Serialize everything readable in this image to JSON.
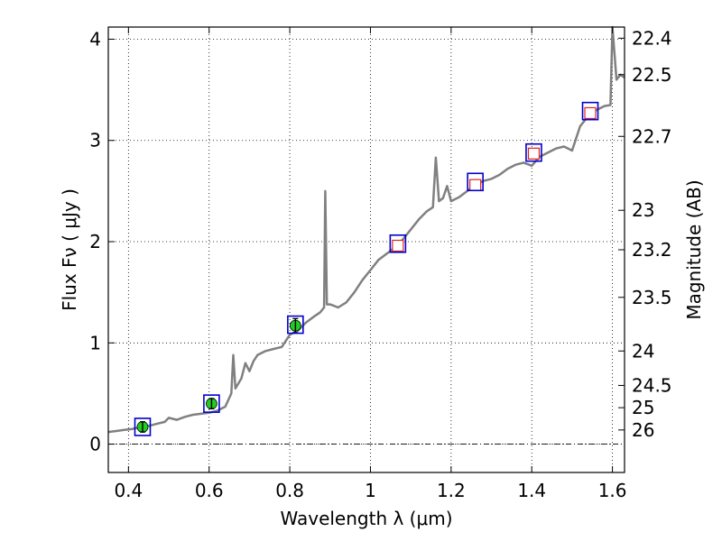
{
  "chart_data": {
    "type": "scatter",
    "xlabel": "Wavelength  λ (μm)",
    "ylabel": "Flux  Fν  ( μJy )",
    "y2label": "Magnitude (AB)",
    "xlim": [
      0.35,
      1.63
    ],
    "ylim": [
      -0.28,
      4.12
    ],
    "x_ticks": [
      0.4,
      0.6,
      0.8,
      1.0,
      1.2,
      1.4,
      1.6
    ],
    "x_tick_labels": [
      "0.4",
      "0.6",
      "0.8",
      "1",
      "1.2",
      "1.4",
      "1.6"
    ],
    "y_ticks": [
      0,
      1,
      2,
      3,
      4
    ],
    "y_tick_labels": [
      "0",
      "1",
      "2",
      "3",
      "4"
    ],
    "y2_ticks": [
      {
        "label": "22.4",
        "flux": 4.01
      },
      {
        "label": "22.5",
        "flux": 3.65
      },
      {
        "label": "22.7",
        "flux": 3.04
      },
      {
        "label": "23",
        "flux": 2.31
      },
      {
        "label": "23.2",
        "flux": 1.92
      },
      {
        "label": "23.5",
        "flux": 1.45
      },
      {
        "label": "24",
        "flux": 0.92
      },
      {
        "label": "24.5",
        "flux": 0.58
      },
      {
        "label": "25",
        "flux": 0.36
      },
      {
        "label": "26",
        "flux": 0.14
      }
    ],
    "grid": true,
    "zero_line": true,
    "series": [
      {
        "kind": "model-spectrum",
        "color": "#808080",
        "points": [
          [
            0.35,
            0.12
          ],
          [
            0.37,
            0.13
          ],
          [
            0.39,
            0.14
          ],
          [
            0.41,
            0.15
          ],
          [
            0.43,
            0.17
          ],
          [
            0.45,
            0.18
          ],
          [
            0.47,
            0.2
          ],
          [
            0.49,
            0.22
          ],
          [
            0.5,
            0.26
          ],
          [
            0.52,
            0.24
          ],
          [
            0.54,
            0.27
          ],
          [
            0.56,
            0.29
          ],
          [
            0.58,
            0.3
          ],
          [
            0.6,
            0.31
          ],
          [
            0.62,
            0.33
          ],
          [
            0.64,
            0.37
          ],
          [
            0.655,
            0.5
          ],
          [
            0.66,
            0.88
          ],
          [
            0.665,
            0.55
          ],
          [
            0.68,
            0.65
          ],
          [
            0.69,
            0.8
          ],
          [
            0.7,
            0.72
          ],
          [
            0.71,
            0.82
          ],
          [
            0.72,
            0.88
          ],
          [
            0.74,
            0.92
          ],
          [
            0.76,
            0.94
          ],
          [
            0.78,
            0.96
          ],
          [
            0.8,
            1.08
          ],
          [
            0.82,
            1.12
          ],
          [
            0.84,
            1.2
          ],
          [
            0.86,
            1.26
          ],
          [
            0.875,
            1.3
          ],
          [
            0.885,
            1.35
          ],
          [
            0.888,
            2.5
          ],
          [
            0.892,
            1.38
          ],
          [
            0.9,
            1.38
          ],
          [
            0.92,
            1.35
          ],
          [
            0.94,
            1.4
          ],
          [
            0.96,
            1.5
          ],
          [
            0.98,
            1.62
          ],
          [
            1.0,
            1.72
          ],
          [
            1.02,
            1.82
          ],
          [
            1.04,
            1.88
          ],
          [
            1.06,
            1.94
          ],
          [
            1.08,
            2.02
          ],
          [
            1.1,
            2.12
          ],
          [
            1.12,
            2.22
          ],
          [
            1.14,
            2.3
          ],
          [
            1.155,
            2.34
          ],
          [
            1.162,
            2.83
          ],
          [
            1.17,
            2.4
          ],
          [
            1.18,
            2.43
          ],
          [
            1.19,
            2.55
          ],
          [
            1.2,
            2.4
          ],
          [
            1.22,
            2.44
          ],
          [
            1.24,
            2.5
          ],
          [
            1.26,
            2.56
          ],
          [
            1.28,
            2.6
          ],
          [
            1.3,
            2.62
          ],
          [
            1.32,
            2.66
          ],
          [
            1.34,
            2.72
          ],
          [
            1.36,
            2.76
          ],
          [
            1.38,
            2.78
          ],
          [
            1.4,
            2.75
          ],
          [
            1.42,
            2.84
          ],
          [
            1.44,
            2.88
          ],
          [
            1.46,
            2.92
          ],
          [
            1.48,
            2.94
          ],
          [
            1.5,
            2.9
          ],
          [
            1.52,
            3.14
          ],
          [
            1.54,
            3.24
          ],
          [
            1.56,
            3.3
          ],
          [
            1.58,
            3.34
          ],
          [
            1.595,
            3.35
          ],
          [
            1.6,
            4.15
          ],
          [
            1.61,
            3.6
          ],
          [
            1.62,
            3.65
          ],
          [
            1.63,
            3.62
          ]
        ]
      },
      {
        "kind": "observed-photometry",
        "color": "#22cc22",
        "points": [
          {
            "x": 0.435,
            "y": 0.17,
            "err": 0.05
          },
          {
            "x": 0.606,
            "y": 0.4,
            "err": 0.05
          },
          {
            "x": 0.814,
            "y": 1.17,
            "err": 0.07
          }
        ]
      },
      {
        "kind": "predicted-photometry",
        "color": "#dd2222",
        "points": [
          {
            "x": 1.068,
            "y": 1.96
          },
          {
            "x": 1.26,
            "y": 2.56
          },
          {
            "x": 1.405,
            "y": 2.87
          },
          {
            "x": 1.545,
            "y": 3.27
          }
        ]
      },
      {
        "kind": "model-photometry-boxes",
        "color": "#0000cc",
        "points": [
          {
            "x": 0.435,
            "y": 0.17
          },
          {
            "x": 0.606,
            "y": 0.4
          },
          {
            "x": 0.814,
            "y": 1.18
          },
          {
            "x": 1.068,
            "y": 1.98
          },
          {
            "x": 1.26,
            "y": 2.59
          },
          {
            "x": 1.405,
            "y": 2.88
          },
          {
            "x": 1.545,
            "y": 3.29
          }
        ]
      }
    ]
  }
}
